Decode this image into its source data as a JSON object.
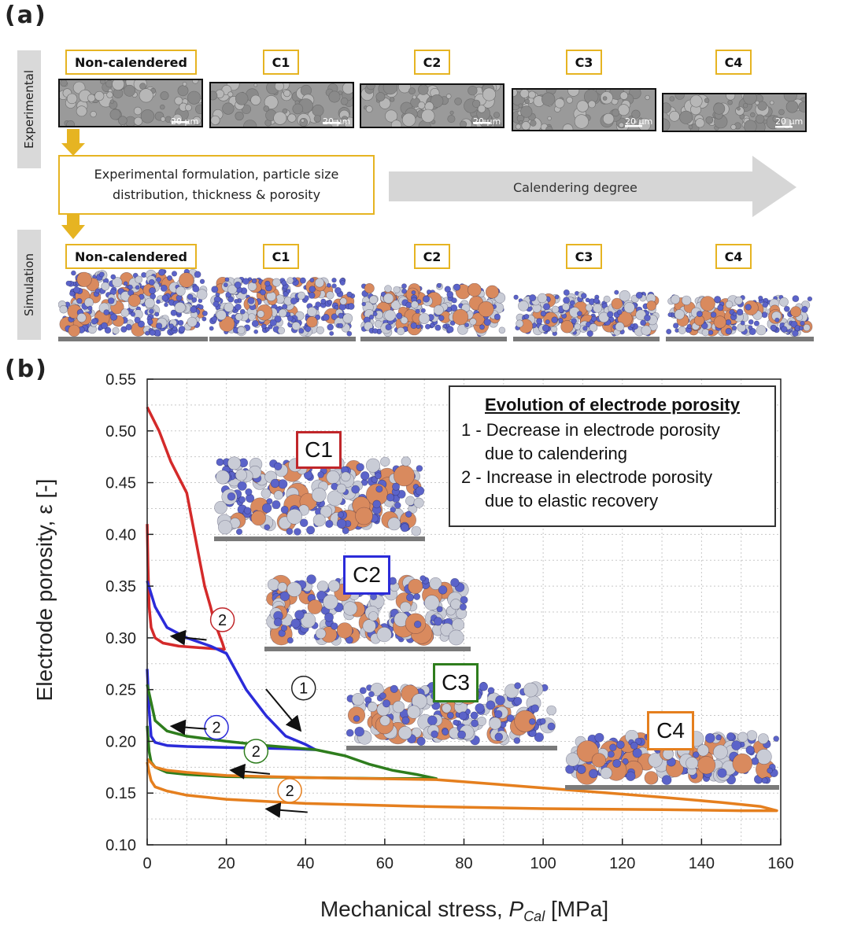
{
  "panel_a": {
    "label": "(a)",
    "row_experimental": "Experimental",
    "row_simulation": "Simulation",
    "stages": [
      "Non-calendered",
      "C1",
      "C2",
      "C3",
      "C4"
    ],
    "scale_bar": "20 µm",
    "formulation_text": "Experimental formulation, particle size distribution, thickness & porosity",
    "calendering_label": "Calendering degree",
    "colors": {
      "accent_yellow": "#e6b422",
      "arrow_gray": "#d6d6d6",
      "particle_blue": "#5b63c9",
      "particle_orange": "#d98a5e",
      "particle_white": "#c9ccd6"
    }
  },
  "panel_b": {
    "label": "(b)",
    "legend": {
      "title": "Evolution of electrode porosity",
      "item1_line1": "1 - Decrease in electrode porosity",
      "item1_line2": "due to calendering",
      "item2_line1": "2 - Increase in electrode porosity",
      "item2_line2": "due to elastic recovery"
    },
    "insets": [
      "C1",
      "C2",
      "C3",
      "C4"
    ],
    "markers": {
      "one": "1",
      "two": "2"
    }
  },
  "chart_data": {
    "type": "line",
    "title": "",
    "xlabel_main": "Mechanical stress, ",
    "xlabel_var": "P",
    "xlabel_sub": "Cal",
    "xlabel_unit": " [MPa]",
    "ylabel": "Electrode porosity, ε [-]",
    "xlim": [
      0,
      160
    ],
    "ylim": [
      0.1,
      0.55
    ],
    "x_ticks": [
      0,
      20,
      40,
      60,
      80,
      100,
      120,
      140,
      160
    ],
    "y_ticks": [
      0.1,
      0.15,
      0.2,
      0.25,
      0.3,
      0.35,
      0.4,
      0.45,
      0.5,
      0.55
    ],
    "y_tick_labels": [
      "0.10",
      "0.15",
      "0.20",
      "0.25",
      "0.30",
      "0.35",
      "0.40",
      "0.45",
      "0.50",
      "0.55"
    ],
    "grid": true,
    "series": [
      {
        "name": "C1",
        "color": "#d42a2a",
        "x": [
          0,
          3,
          6,
          10,
          12,
          13.5,
          14.5,
          16,
          17,
          18,
          19,
          19.5,
          19.2,
          15,
          8,
          4,
          2,
          1,
          0.5,
          0.2,
          0
        ],
        "y": [
          0.523,
          0.5,
          0.47,
          0.44,
          0.4,
          0.37,
          0.35,
          0.33,
          0.315,
          0.305,
          0.295,
          0.289,
          0.289,
          0.29,
          0.292,
          0.295,
          0.3,
          0.31,
          0.33,
          0.37,
          0.41
        ]
      },
      {
        "name": "C2",
        "color": "#2b2bd9",
        "x": [
          0,
          2,
          5,
          10,
          16,
          20,
          25,
          30,
          35,
          40,
          42.5,
          42,
          35,
          20,
          10,
          5,
          2,
          1,
          0.5,
          0
        ],
        "y": [
          0.355,
          0.33,
          0.31,
          0.3,
          0.292,
          0.285,
          0.25,
          0.225,
          0.205,
          0.197,
          0.192,
          0.192,
          0.193,
          0.194,
          0.195,
          0.196,
          0.199,
          0.205,
          0.23,
          0.27
        ]
      },
      {
        "name": "C3",
        "color": "#2e7d1d",
        "x": [
          0,
          2,
          5,
          10,
          20,
          30,
          42.5,
          50,
          56,
          62,
          68,
          73,
          72,
          60,
          40,
          20,
          10,
          5,
          2,
          1,
          0.5,
          0
        ],
        "y": [
          0.255,
          0.22,
          0.21,
          0.205,
          0.2,
          0.196,
          0.192,
          0.186,
          0.178,
          0.172,
          0.168,
          0.164,
          0.164,
          0.164,
          0.165,
          0.166,
          0.168,
          0.17,
          0.175,
          0.18,
          0.19,
          0.215
        ]
      },
      {
        "name": "C4",
        "color": "#e57f1e",
        "x": [
          0,
          2,
          5,
          10,
          20,
          40,
          73,
          90,
          110,
          130,
          145,
          155,
          159,
          150,
          130,
          100,
          70,
          40,
          20,
          10,
          5,
          2,
          1,
          0.5,
          0
        ],
        "y": [
          0.183,
          0.175,
          0.172,
          0.17,
          0.167,
          0.165,
          0.163,
          0.158,
          0.152,
          0.146,
          0.141,
          0.137,
          0.133,
          0.133,
          0.134,
          0.135,
          0.137,
          0.14,
          0.144,
          0.148,
          0.152,
          0.156,
          0.162,
          0.17,
          0.18
        ]
      }
    ]
  }
}
